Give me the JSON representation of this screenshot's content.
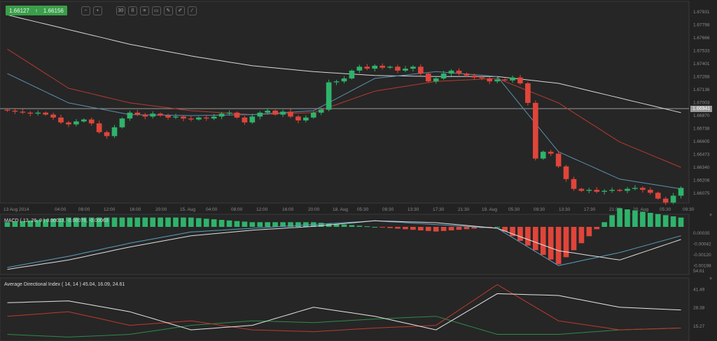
{
  "toolbar": {
    "bid": "1.66127",
    "ask": "1.66156",
    "direction_icon": "arrow-up",
    "buttons": [
      "zoom-out",
      "zoom-in",
      "timeframe",
      "candle-type",
      "indicators",
      "templates",
      "drawing",
      "edit",
      "brush"
    ]
  },
  "colors": {
    "up": "#2fb36b",
    "down": "#e0453a",
    "sma_long": "#d8d8d8",
    "ma_red": "#b83a30",
    "ma_blue": "#5a8fb0",
    "macd": "#5a9fc0",
    "signal": "#e0e0e0",
    "adx": "#e6e6e6",
    "plus_di": "#c0392b",
    "minus_di": "#2e8b4a"
  },
  "last_price": "1.66941",
  "price_axis": [
    "1.67931",
    "1.67798",
    "1.67666",
    "1.67533",
    "1.67401",
    "1.67268",
    "1.67136",
    "1.67003",
    "1.66870",
    "1.66738",
    "1.66605",
    "1.66473",
    "1.66340",
    "1.66208",
    "1.66075"
  ],
  "time_axis": [
    "13 Aug 2014",
    "04:00",
    "08:00",
    "12:00",
    "16:00",
    "20:00",
    "15. Aug",
    "04:00",
    "08:00",
    "12:00",
    "16:00",
    "20:00",
    "18. Aug",
    "05:30",
    "09:30",
    "13:30",
    "17:30",
    "21:30",
    "19. Aug",
    "05:30",
    "09:30",
    "13:30",
    "17:30",
    "21:30",
    "20. Aug",
    "05:30",
    "09:30"
  ],
  "macd_panel": {
    "title": "MACD ( 12, 26, 9 ) 0.00013, -0.00076, -0.00063",
    "axis": [
      "0.00035",
      "-0.00042",
      "-0.00120",
      "-0.00198"
    ],
    "close_label": "×"
  },
  "adx_panel": {
    "title": "Average Directional Index ( 14, 14 ) 45.04, 16.09, 24.61",
    "axis": [
      "54.61",
      "41.49",
      "28.38",
      "15.27"
    ],
    "close_label": "×"
  },
  "chart_data": [
    {
      "type": "candlestick",
      "ylim": [
        1.6598,
        1.68
      ],
      "closes": [
        1.6692,
        1.6691,
        1.669,
        1.6689,
        1.669,
        1.6688,
        1.6685,
        1.668,
        1.6678,
        1.6681,
        1.6683,
        1.6679,
        1.667,
        1.6666,
        1.6675,
        1.6684,
        1.669,
        1.6688,
        1.6686,
        1.6689,
        1.6687,
        1.6685,
        1.6686,
        1.6684,
        1.6683,
        1.6685,
        1.6684,
        1.6686,
        1.6689,
        1.669,
        1.6685,
        1.668,
        1.6686,
        1.669,
        1.6692,
        1.6688,
        1.6691,
        1.6686,
        1.6682,
        1.6685,
        1.669,
        1.6693,
        1.6721,
        1.6722,
        1.6725,
        1.6733,
        1.6737,
        1.6735,
        1.6738,
        1.6736,
        1.6737,
        1.6733,
        1.6735,
        1.6737,
        1.673,
        1.6722,
        1.6725,
        1.673,
        1.6733,
        1.673,
        1.6728,
        1.6726,
        1.6725,
        1.6722,
        1.6724,
        1.6723,
        1.6726,
        1.672,
        1.67,
        1.6643,
        1.665,
        1.6648,
        1.6635,
        1.6622,
        1.6612,
        1.661,
        1.6611,
        1.6609,
        1.661,
        1.6611,
        1.661,
        1.6612,
        1.6613,
        1.6611,
        1.6608,
        1.6602,
        1.6598,
        1.6605,
        1.6613
      ],
      "overlays": [
        {
          "color_key": "sma_long",
          "values": [
            1.679,
            1.6775,
            1.676,
            1.6748,
            1.6738,
            1.6732,
            1.6728,
            1.6727,
            1.6727,
            1.672,
            1.6705,
            1.669
          ]
        },
        {
          "color_key": "ma_red",
          "values": [
            1.6755,
            1.6715,
            1.67,
            1.6692,
            1.6688,
            1.669,
            1.6712,
            1.6722,
            1.6725,
            1.67,
            1.666,
            1.6634
          ]
        },
        {
          "color_key": "ma_blue",
          "values": [
            1.673,
            1.67,
            1.6688,
            1.6687,
            1.6688,
            1.6692,
            1.6725,
            1.6732,
            1.6727,
            1.665,
            1.6622,
            1.6612
          ]
        }
      ]
    },
    {
      "type": "line",
      "indicator": "MACD",
      "ylim": [
        -0.0024,
        0.0006
      ],
      "macd": [
        -0.0021,
        -0.0015,
        -0.0008,
        -0.0002,
        0.0,
        0.0002,
        0.0004,
        0.0002,
        0.0,
        -0.002,
        -0.0013,
        -0.0004
      ],
      "signal": [
        -0.0022,
        -0.0017,
        -0.001,
        -0.0004,
        -0.0001,
        0.0001,
        0.0004,
        0.0003,
        0.0,
        -0.0012,
        -0.0017,
        -0.0006
      ]
    },
    {
      "type": "line",
      "indicator": "ADX",
      "ylim": [
        10,
        75
      ],
      "adx": [
        50,
        52,
        40,
        20,
        25,
        45,
        35,
        20,
        60,
        58,
        45,
        42
      ],
      "plus_di": [
        35,
        40,
        25,
        30,
        20,
        18,
        22,
        25,
        70,
        30,
        20,
        22
      ],
      "minus_di": [
        15,
        12,
        15,
        25,
        30,
        28,
        32,
        35,
        15,
        15,
        20,
        22
      ]
    }
  ]
}
